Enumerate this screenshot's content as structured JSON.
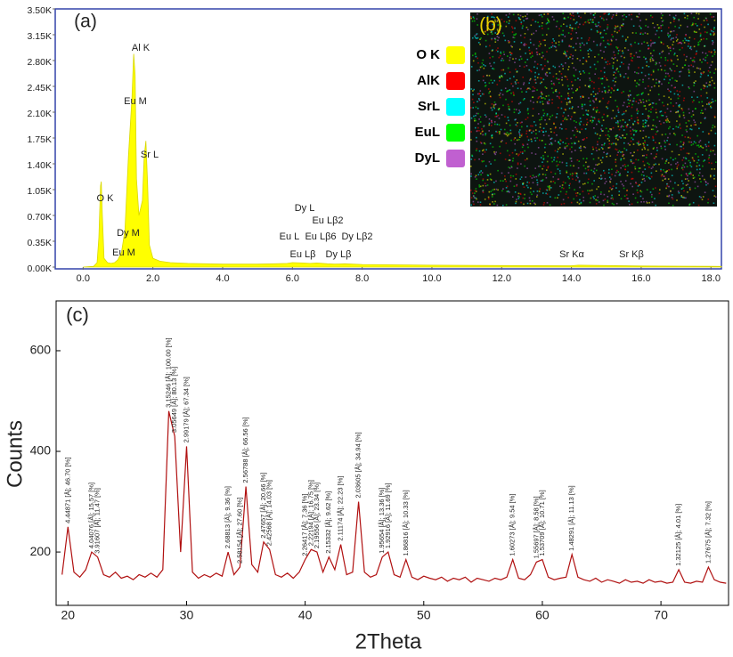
{
  "chart_data": [
    {
      "type": "area",
      "panel_label": "(a)",
      "color": "#ffff00",
      "x": [
        0,
        0.3,
        0.4,
        0.45,
        0.5,
        0.52,
        0.55,
        0.6,
        0.7,
        0.8,
        0.9,
        1.0,
        1.1,
        1.2,
        1.3,
        1.4,
        1.45,
        1.49,
        1.53,
        1.6,
        1.7,
        1.75,
        1.8,
        1.85,
        1.9,
        2.0,
        2.2,
        2.5,
        3,
        4,
        5,
        5.5,
        5.85,
        6,
        6.3,
        6.5,
        6.7,
        7,
        7.2,
        7.5,
        8,
        9,
        10,
        12,
        14,
        14.2,
        16,
        18,
        18.3
      ],
      "values": [
        0,
        10,
        60,
        400,
        1100,
        1160,
        700,
        120,
        60,
        50,
        60,
        100,
        200,
        500,
        1500,
        2300,
        2890,
        2600,
        1200,
        700,
        900,
        1500,
        1710,
        1100,
        300,
        120,
        80,
        60,
        50,
        40,
        40,
        45,
        50,
        60,
        55,
        50,
        55,
        45,
        40,
        45,
        35,
        30,
        25,
        20,
        18,
        25,
        15,
        10,
        8
      ],
      "xlim": [
        -0.8,
        18.3
      ],
      "ylim": [
        0,
        3500
      ],
      "xticks": [
        {
          "value": 0,
          "label": "0.0"
        },
        {
          "value": 2,
          "label": "2.0"
        },
        {
          "value": 4,
          "label": "4.0"
        },
        {
          "value": 6,
          "label": "6.0"
        },
        {
          "value": 8,
          "label": "8.0"
        },
        {
          "value": 10,
          "label": "10.0"
        },
        {
          "value": 12,
          "label": "12.0"
        },
        {
          "value": 14,
          "label": "14.0"
        },
        {
          "value": 16,
          "label": "16.0"
        },
        {
          "value": 18,
          "label": "18.0"
        }
      ],
      "yticks": [
        {
          "value": 0,
          "label": "0.00K"
        },
        {
          "value": 350,
          "label": "0.35K"
        },
        {
          "value": 700,
          "label": "0.70K"
        },
        {
          "value": 1050,
          "label": "1.05K"
        },
        {
          "value": 1400,
          "label": "1.40K"
        },
        {
          "value": 1750,
          "label": "1.75K"
        },
        {
          "value": 2100,
          "label": "2.10K"
        },
        {
          "value": 2450,
          "label": "2.45K"
        },
        {
          "value": 2800,
          "label": "2.80K"
        },
        {
          "value": 3150,
          "label": "3.15K"
        },
        {
          "value": 3500,
          "label": "3.50K"
        }
      ],
      "annotations": [
        "O  K",
        "Al K",
        "Eu  M",
        "Sr  L",
        "Dy  M",
        "Eu  M",
        "Dy L",
        "Eu Lβ2",
        "Eu L",
        "Eu Lβ6",
        "Dy Lβ2",
        "Eu Lβ",
        "Dy Lβ",
        "Sr Kα",
        "Sr Kβ"
      ],
      "inset": {
        "label": "(b)",
        "legend": [
          {
            "name": "O K",
            "color": "#ffff00"
          },
          {
            "name": "AlK",
            "color": "#ff0000"
          },
          {
            "name": "SrL",
            "color": "#00ffff"
          },
          {
            "name": "EuL",
            "color": "#00ff00"
          },
          {
            "name": "DyL",
            "color": "#c060d0"
          }
        ]
      }
    },
    {
      "type": "line",
      "panel_label": "(c)",
      "color": "#b01010",
      "xlabel": "2Theta",
      "ylabel": "Counts",
      "x": [
        19.5,
        20,
        20.5,
        21,
        21.5,
        22,
        22.5,
        23,
        23.5,
        24,
        24.5,
        25,
        25.5,
        26,
        26.5,
        27,
        27.5,
        28,
        28.5,
        29,
        29.5,
        30,
        30.5,
        31,
        31.5,
        32,
        32.5,
        33,
        33.5,
        34,
        34.5,
        35,
        35.5,
        36,
        36.5,
        37,
        37.5,
        38,
        38.5,
        39,
        39.5,
        40,
        40.5,
        41,
        41.5,
        42,
        42.5,
        43,
        43.5,
        44,
        44.5,
        45,
        45.5,
        46,
        46.5,
        47,
        47.5,
        48,
        48.5,
        49,
        49.5,
        50,
        50.5,
        51,
        51.5,
        52,
        52.5,
        53,
        53.5,
        54,
        54.5,
        55,
        55.5,
        56,
        56.5,
        57,
        57.5,
        58,
        58.5,
        59,
        59.5,
        60,
        60.5,
        61,
        61.5,
        62,
        62.5,
        63,
        63.5,
        64,
        64.5,
        65,
        65.5,
        66,
        66.5,
        67,
        67.5,
        68,
        68.5,
        69,
        69.5,
        70,
        70.5,
        71,
        71.5,
        72,
        72.5,
        73,
        73.5,
        74,
        74.5,
        75,
        75.5
      ],
      "values": [
        155,
        250,
        160,
        150,
        165,
        200,
        190,
        155,
        150,
        160,
        148,
        152,
        145,
        155,
        150,
        158,
        150,
        165,
        480,
        430,
        200,
        410,
        160,
        148,
        155,
        150,
        158,
        152,
        200,
        155,
        170,
        330,
        175,
        160,
        220,
        205,
        155,
        150,
        158,
        148,
        160,
        185,
        205,
        200,
        160,
        190,
        165,
        215,
        155,
        160,
        300,
        160,
        150,
        155,
        190,
        200,
        155,
        150,
        185,
        150,
        145,
        152,
        148,
        145,
        150,
        142,
        148,
        145,
        150,
        140,
        148,
        145,
        142,
        148,
        145,
        150,
        185,
        148,
        145,
        155,
        180,
        185,
        150,
        145,
        148,
        150,
        195,
        150,
        145,
        142,
        148,
        140,
        145,
        142,
        138,
        145,
        140,
        142,
        138,
        145,
        140,
        142,
        138,
        140,
        165,
        140,
        138,
        142,
        140,
        170,
        145,
        140,
        138
      ],
      "xlim": [
        19,
        75.7
      ],
      "ylim": [
        94,
        699
      ],
      "xticks": [
        20,
        30,
        40,
        50,
        60,
        70
      ],
      "yticks": [
        200,
        400,
        600
      ],
      "annotations": [
        {
          "text": "4.44871 [Å]; 46.70 [%]",
          "x": 20
        },
        {
          "text": "4.04076 [Å]; 15.57 [%]",
          "x": 22
        },
        {
          "text": "3.91607 [Å]; 11.47 [%]",
          "x": 22.5
        },
        {
          "text": "3.15246 [Å]; 100.00 [%]",
          "x": 28.5
        },
        {
          "text": "3.05649 [Å]; 80.13 [%]",
          "x": 29
        },
        {
          "text": "2.99179 [Å]; 67.34 [%]",
          "x": 30
        },
        {
          "text": "2.68813 [Å]; 9.36 [%]",
          "x": 33.5
        },
        {
          "text": "2.58154 [Å]; 27.60 [%]",
          "x": 34.5
        },
        {
          "text": "2.56788 [Å]; 66.56 [%]",
          "x": 35
        },
        {
          "text": "2.47657 [Å]; 20.66 [%]",
          "x": 36.5
        },
        {
          "text": "2.42568 [Å]; 14.03 [%]",
          "x": 37
        },
        {
          "text": "2.26417 [Å]; 7.36 [%]",
          "x": 40
        },
        {
          "text": "2.22194 [Å]; 16.75 [%]",
          "x": 40.5
        },
        {
          "text": "2.19556 [Å]; 23.34 [%]",
          "x": 41
        },
        {
          "text": "2.15332 [Å]; 9.62 [%]",
          "x": 42
        },
        {
          "text": "2.11174 [Å]; 22.23 [%]",
          "x": 43
        },
        {
          "text": "2.03605 [Å]; 34.94 [%]",
          "x": 44.5
        },
        {
          "text": "1.95654 [Å]; 13.36 [%]",
          "x": 46.5
        },
        {
          "text": "1.92916 [Å]; 11.69 [%]",
          "x": 47
        },
        {
          "text": "1.86816 [Å]; 10.33 [%]",
          "x": 48.5
        },
        {
          "text": "1.60273 [Å]; 9.54 [%]",
          "x": 57.5
        },
        {
          "text": "1.55697 [Å]; 8.58 [%]",
          "x": 59.5
        },
        {
          "text": "1.53709 [Å]; 10.71 [%]",
          "x": 60
        },
        {
          "text": "1.48291 [Å]; 11.13 [%]",
          "x": 62.5
        },
        {
          "text": "1.32125 [Å]; 4.01 [%]",
          "x": 71.5
        },
        {
          "text": "1.27675 [Å]; 7.32 [%]",
          "x": 74
        }
      ]
    }
  ]
}
